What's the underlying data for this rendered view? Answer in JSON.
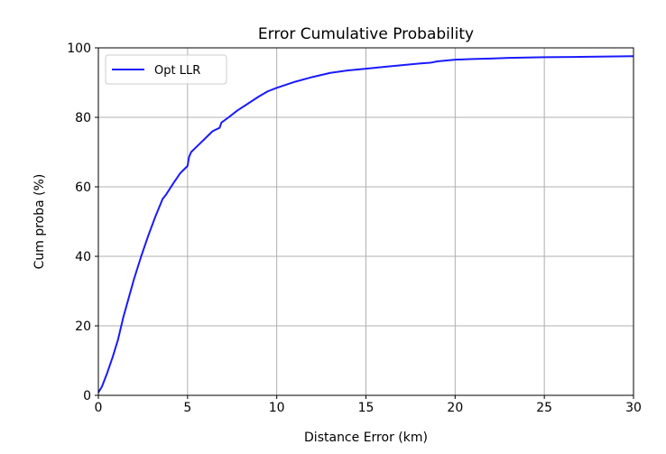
{
  "chart_data": {
    "type": "line",
    "title": "Error Cumulative Probability",
    "xlabel": "Distance Error (km)",
    "ylabel": "Cum proba (%)",
    "xlim": [
      0,
      30
    ],
    "ylim": [
      0,
      100
    ],
    "xticks": [
      0,
      5,
      10,
      15,
      20,
      25,
      30
    ],
    "yticks": [
      0,
      20,
      40,
      60,
      80,
      100
    ],
    "grid": true,
    "legend_position": "top-left",
    "series": [
      {
        "name": "Opt LLR",
        "color": "#1a1aff",
        "x": [
          0,
          0.2,
          0.5,
          0.8,
          1.1,
          1.4,
          1.7,
          2.0,
          2.4,
          2.8,
          3.2,
          3.6,
          3.8,
          4.2,
          4.6,
          5.0,
          5.08,
          5.2,
          5.6,
          6.0,
          6.4,
          6.8,
          6.9,
          7.3,
          7.8,
          8.4,
          9.0,
          9.5,
          10.0,
          11.0,
          12.0,
          13.0,
          14.0,
          15.0,
          16.0,
          17.0,
          18.0,
          18.6,
          19.0,
          20.0,
          21.0,
          22.0,
          23.0,
          24.0,
          25.0,
          27.0,
          30.0
        ],
        "y": [
          0.8,
          2.5,
          6.5,
          11,
          16,
          22.5,
          28,
          33.5,
          40,
          46,
          51.5,
          56.5,
          57.8,
          61,
          64,
          66,
          68.5,
          70,
          72,
          74,
          76,
          77,
          78.5,
          80,
          82,
          84,
          86,
          87.5,
          88.5,
          90.2,
          91.6,
          92.8,
          93.5,
          94,
          94.5,
          95,
          95.5,
          95.7,
          96.1,
          96.6,
          96.8,
          96.9,
          97.1,
          97.2,
          97.3,
          97.4,
          97.6
        ]
      }
    ]
  }
}
